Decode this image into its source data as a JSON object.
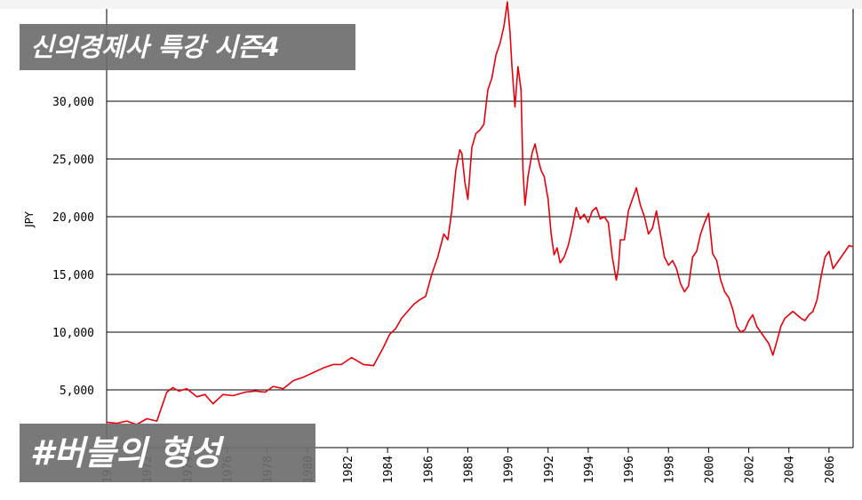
{
  "overlays": {
    "title": "신의경제사 특강 시즌4",
    "caption": "#버블의 형성"
  },
  "chart_data": {
    "type": "line",
    "title": "",
    "xlabel": "",
    "ylabel": "JPY",
    "xlim": [
      1970,
      2007.2
    ],
    "ylim": [
      0,
      38000
    ],
    "y_ticks": [
      5000,
      10000,
      15000,
      20000,
      25000,
      30000
    ],
    "y_tick_labels": [
      "5,000",
      "10,000",
      "15,000",
      "20,000",
      "25,000",
      "30,000"
    ],
    "x_ticks": [
      1970,
      1972,
      1974,
      1976,
      1978,
      1980,
      1982,
      1984,
      1986,
      1988,
      1990,
      1992,
      1994,
      1996,
      1998,
      2000,
      2002,
      2004,
      2006
    ],
    "x_tick_labels": [
      "1970",
      "1972",
      "1974",
      "1976",
      "1978",
      "1980",
      "1982",
      "1984",
      "1986",
      "1988",
      "1990",
      "1992",
      "1994",
      "1996",
      "1998",
      "2000",
      "2002",
      "2004",
      "2006"
    ],
    "grid": "horizontal",
    "line_color": "#e8000b",
    "series": [
      {
        "name": "",
        "x": [
          1970.0,
          1970.5,
          1971.0,
          1971.5,
          1972.0,
          1972.5,
          1973.0,
          1973.3,
          1973.6,
          1974.0,
          1974.5,
          1974.9,
          1975.3,
          1975.8,
          1976.3,
          1976.9,
          1977.4,
          1977.9,
          1978.3,
          1978.8,
          1979.3,
          1979.8,
          1980.3,
          1980.8,
          1981.3,
          1981.7,
          1982.2,
          1982.8,
          1983.3,
          1983.8,
          1984.1,
          1984.4,
          1984.7,
          1985.0,
          1985.3,
          1985.6,
          1985.9,
          1986.2,
          1986.5,
          1986.8,
          1987.0,
          1987.2,
          1987.4,
          1987.6,
          1987.7,
          1987.85,
          1988.0,
          1988.2,
          1988.4,
          1988.6,
          1988.8,
          1989.0,
          1989.2,
          1989.4,
          1989.6,
          1989.8,
          1989.97,
          1990.1,
          1990.2,
          1990.35,
          1990.5,
          1990.65,
          1990.75,
          1990.85,
          1991.0,
          1991.2,
          1991.35,
          1991.5,
          1991.65,
          1991.8,
          1992.0,
          1992.15,
          1992.3,
          1992.45,
          1992.6,
          1992.8,
          1993.0,
          1993.2,
          1993.4,
          1993.6,
          1993.8,
          1994.0,
          1994.2,
          1994.4,
          1994.6,
          1994.8,
          1995.0,
          1995.2,
          1995.4,
          1995.5,
          1995.6,
          1995.8,
          1996.0,
          1996.2,
          1996.4,
          1996.6,
          1996.8,
          1997.0,
          1997.2,
          1997.4,
          1997.6,
          1997.8,
          1998.0,
          1998.2,
          1998.4,
          1998.6,
          1998.8,
          1999.0,
          1999.2,
          1999.4,
          1999.6,
          1999.8,
          2000.0,
          2000.2,
          2000.4,
          2000.6,
          2000.8,
          2001.0,
          2001.2,
          2001.4,
          2001.6,
          2001.8,
          2002.0,
          2002.2,
          2002.4,
          2002.6,
          2002.8,
          2003.0,
          2003.2,
          2003.4,
          2003.6,
          2003.8,
          2004.0,
          2004.2,
          2004.4,
          2004.6,
          2004.8,
          2005.0,
          2005.2,
          2005.4,
          2005.6,
          2005.8,
          2006.0,
          2006.2,
          2006.4,
          2006.6,
          2006.8,
          2007.0,
          2007.2
        ],
        "values": [
          2200,
          2100,
          2300,
          2000,
          2500,
          2300,
          4800,
          5200,
          4900,
          5100,
          4400,
          4600,
          3800,
          4600,
          4500,
          4800,
          4900,
          4800,
          5300,
          5100,
          5800,
          6100,
          6500,
          6900,
          7200,
          7200,
          7800,
          7200,
          7100,
          8700,
          9800,
          10300,
          11200,
          11800,
          12400,
          12800,
          13100,
          15000,
          16500,
          18500,
          18000,
          20500,
          24000,
          25800,
          25500,
          23000,
          21500,
          26000,
          27200,
          27500,
          28000,
          31000,
          32000,
          34000,
          35000,
          36500,
          38600,
          36000,
          33000,
          29500,
          33000,
          31000,
          24000,
          21000,
          23500,
          25500,
          26300,
          25000,
          24000,
          23500,
          21500,
          18500,
          16700,
          17300,
          16000,
          16500,
          17500,
          19000,
          20800,
          19800,
          20200,
          19500,
          20500,
          20800,
          19800,
          20000,
          19500,
          16500,
          14500,
          15500,
          18000,
          18000,
          20500,
          21500,
          22500,
          21000,
          20000,
          18500,
          19000,
          20500,
          18500,
          16500,
          15800,
          16200,
          15500,
          14200,
          13500,
          14000,
          16500,
          17000,
          18500,
          19500,
          20300,
          16800,
          16200,
          14500,
          13500,
          13000,
          12000,
          10500,
          10000,
          10200,
          11000,
          11500,
          10500,
          10000,
          9500,
          9000,
          8000,
          9200,
          10500,
          11200,
          11500,
          11800,
          11500,
          11200,
          11000,
          11500,
          11800,
          12800,
          14800,
          16500,
          17000,
          15500,
          16000,
          16500,
          17000,
          17500,
          17400
        ]
      }
    ]
  }
}
